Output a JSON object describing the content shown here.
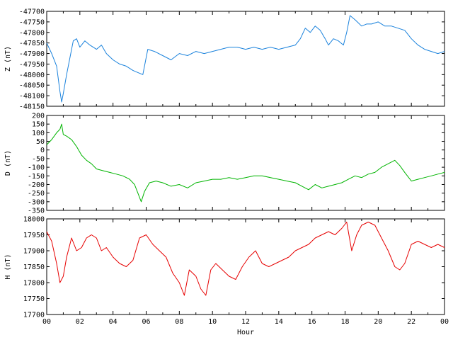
{
  "chart_data": [
    {
      "type": "line",
      "panel": "Z",
      "ylabel": "Z (nT)",
      "color": "#1a82dc",
      "ylim": [
        -48150,
        -47700
      ],
      "yticks": [
        -47700,
        -47750,
        -47800,
        -47850,
        -47900,
        -47950,
        -48000,
        -48050,
        -48100,
        -48150
      ],
      "xlim": [
        0,
        24
      ],
      "x": [
        0,
        0.3,
        0.6,
        0.8,
        0.9,
        1.0,
        1.2,
        1.4,
        1.6,
        1.8,
        2.0,
        2.3,
        2.6,
        3.0,
        3.3,
        3.6,
        4.0,
        4.4,
        4.8,
        5.2,
        5.5,
        5.8,
        6.1,
        6.5,
        7.0,
        7.5,
        8.0,
        8.5,
        9.0,
        9.5,
        10.0,
        10.5,
        11.0,
        11.5,
        12.0,
        12.5,
        13.0,
        13.5,
        14.0,
        14.5,
        15.0,
        15.3,
        15.6,
        15.9,
        16.2,
        16.5,
        16.8,
        17.0,
        17.3,
        17.6,
        17.9,
        18.1,
        18.3,
        18.6,
        19.0,
        19.3,
        19.6,
        20.0,
        20.4,
        20.8,
        21.2,
        21.6,
        22.0,
        22.4,
        22.8,
        23.2,
        23.6,
        24.0
      ],
      "values": [
        -47850,
        -47900,
        -47960,
        -48080,
        -48130,
        -48090,
        -48000,
        -47920,
        -47840,
        -47830,
        -47870,
        -47840,
        -47860,
        -47880,
        -47860,
        -47900,
        -47930,
        -47950,
        -47960,
        -47980,
        -47990,
        -48000,
        -47880,
        -47890,
        -47910,
        -47930,
        -47900,
        -47910,
        -47890,
        -47900,
        -47890,
        -47880,
        -47870,
        -47870,
        -47880,
        -47870,
        -47880,
        -47870,
        -47880,
        -47870,
        -47860,
        -47830,
        -47780,
        -47800,
        -47770,
        -47790,
        -47830,
        -47860,
        -47830,
        -47840,
        -47860,
        -47800,
        -47720,
        -47740,
        -47770,
        -47760,
        -47760,
        -47750,
        -47770,
        -47770,
        -47780,
        -47790,
        -47830,
        -47860,
        -47880,
        -47890,
        -47900,
        -47890
      ]
    },
    {
      "type": "line",
      "panel": "D",
      "ylabel": "D (nT)",
      "color": "#00b400",
      "ylim": [
        -350,
        200
      ],
      "yticks": [
        200,
        150,
        100,
        50,
        0,
        -50,
        -100,
        -150,
        -200,
        -250,
        -300,
        -350
      ],
      "xlim": [
        0,
        24
      ],
      "x": [
        0,
        0.3,
        0.6,
        0.8,
        0.9,
        1.0,
        1.2,
        1.5,
        1.8,
        2.1,
        2.4,
        2.7,
        3.0,
        3.4,
        3.8,
        4.2,
        4.6,
        5.0,
        5.3,
        5.5,
        5.7,
        5.9,
        6.2,
        6.6,
        7.0,
        7.5,
        8.0,
        8.5,
        9.0,
        9.5,
        10.0,
        10.5,
        11.0,
        11.5,
        12.0,
        12.5,
        13.0,
        13.5,
        14.0,
        14.5,
        15.0,
        15.4,
        15.8,
        16.2,
        16.6,
        17.0,
        17.4,
        17.8,
        18.2,
        18.6,
        19.0,
        19.4,
        19.8,
        20.2,
        20.6,
        21.0,
        21.3,
        21.6,
        22.0,
        22.4,
        22.8,
        23.2,
        23.6,
        24.0
      ],
      "values": [
        30,
        60,
        100,
        120,
        150,
        90,
        80,
        60,
        20,
        -30,
        -60,
        -80,
        -110,
        -120,
        -130,
        -140,
        -150,
        -170,
        -200,
        -250,
        -300,
        -240,
        -190,
        -180,
        -190,
        -210,
        -200,
        -220,
        -190,
        -180,
        -170,
        -170,
        -160,
        -170,
        -160,
        -150,
        -150,
        -160,
        -170,
        -180,
        -190,
        -210,
        -230,
        -200,
        -220,
        -210,
        -200,
        -190,
        -170,
        -150,
        -160,
        -140,
        -130,
        -100,
        -80,
        -60,
        -90,
        -130,
        -180,
        -170,
        -160,
        -150,
        -140,
        -130
      ]
    },
    {
      "type": "line",
      "panel": "H",
      "xlabel": "Hour",
      "ylabel": "H (nT)",
      "color": "#e60000",
      "ylim": [
        17700,
        18000
      ],
      "yticks": [
        18000,
        17950,
        17900,
        17850,
        17800,
        17750,
        17700
      ],
      "xlim": [
        0,
        24
      ],
      "xticks": [
        "00",
        "02",
        "04",
        "06",
        "08",
        "10",
        "12",
        "14",
        "16",
        "18",
        "20",
        "22",
        "00"
      ],
      "x": [
        0,
        0.3,
        0.6,
        0.8,
        1.0,
        1.2,
        1.5,
        1.8,
        2.1,
        2.4,
        2.7,
        3.0,
        3.3,
        3.6,
        4.0,
        4.4,
        4.8,
        5.2,
        5.6,
        6.0,
        6.4,
        6.8,
        7.2,
        7.6,
        8.0,
        8.3,
        8.6,
        9.0,
        9.3,
        9.6,
        9.9,
        10.2,
        10.6,
        11.0,
        11.4,
        11.8,
        12.2,
        12.6,
        13.0,
        13.4,
        13.8,
        14.2,
        14.6,
        15.0,
        15.4,
        15.8,
        16.2,
        16.6,
        17.0,
        17.4,
        17.8,
        18.1,
        18.4,
        18.7,
        19.0,
        19.4,
        19.8,
        20.2,
        20.6,
        21.0,
        21.3,
        21.6,
        22.0,
        22.4,
        22.8,
        23.2,
        23.6,
        24.0
      ],
      "values": [
        17960,
        17930,
        17860,
        17800,
        17820,
        17880,
        17940,
        17900,
        17910,
        17940,
        17950,
        17940,
        17900,
        17910,
        17880,
        17860,
        17850,
        17870,
        17940,
        17950,
        17920,
        17900,
        17880,
        17830,
        17800,
        17760,
        17840,
        17820,
        17780,
        17760,
        17840,
        17860,
        17840,
        17820,
        17810,
        17850,
        17880,
        17900,
        17860,
        17850,
        17860,
        17870,
        17880,
        17900,
        17910,
        17920,
        17940,
        17950,
        17960,
        17950,
        17970,
        17990,
        17900,
        17950,
        17980,
        17990,
        17980,
        17940,
        17900,
        17850,
        17840,
        17860,
        17920,
        17930,
        17920,
        17910,
        17920,
        17910
      ]
    }
  ]
}
